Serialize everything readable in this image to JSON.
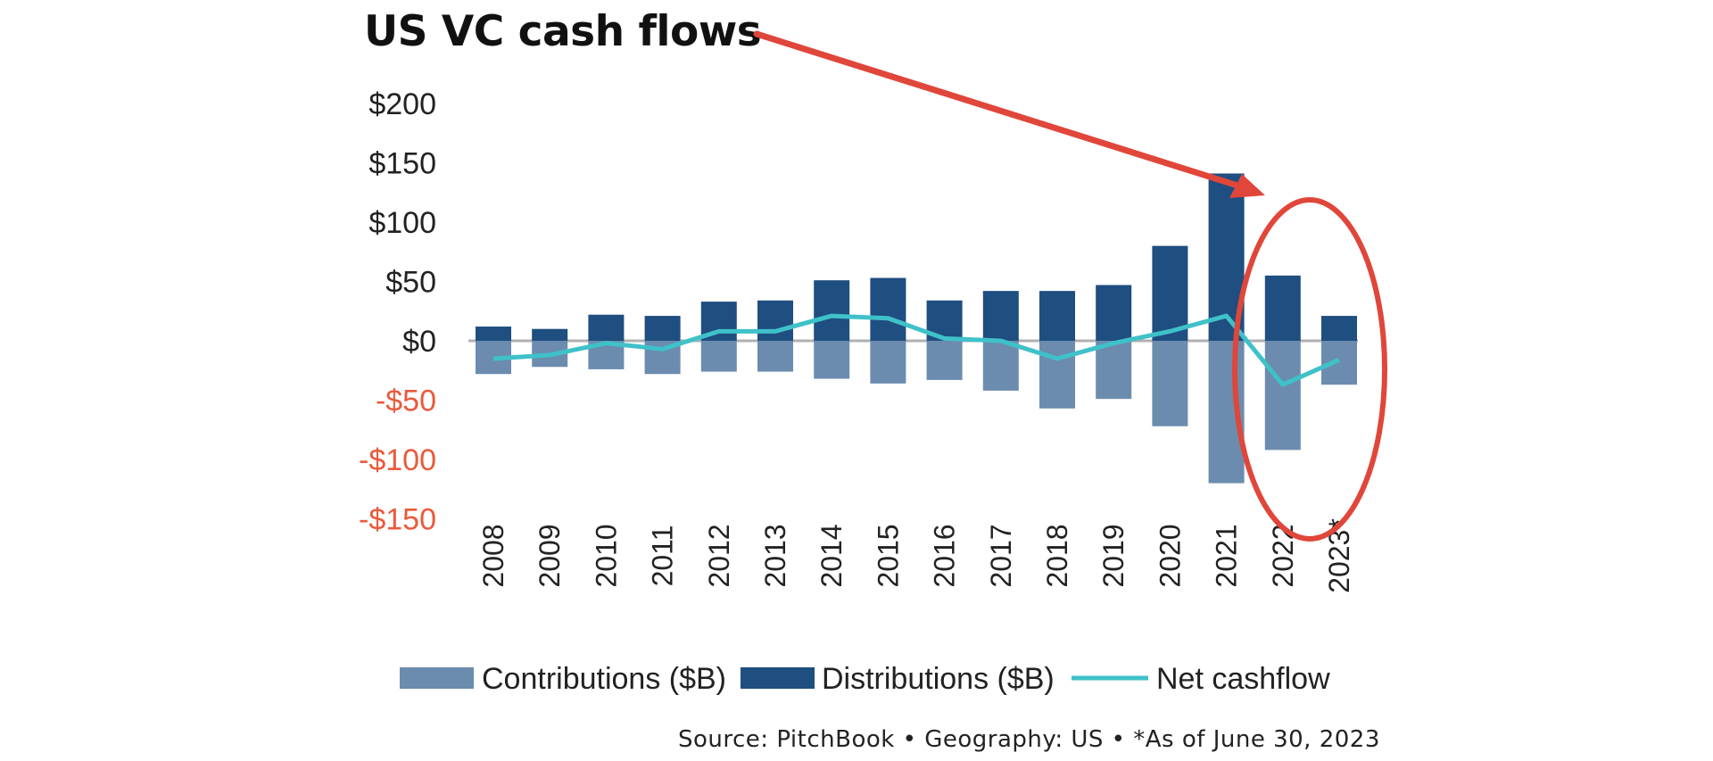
{
  "chart_data": {
    "type": "bar",
    "title": "US VC cash flows",
    "categories": [
      "2008",
      "2009",
      "2010",
      "2011",
      "2012",
      "2013",
      "2014",
      "2015",
      "2016",
      "2017",
      "2018",
      "2019",
      "2020",
      "2021",
      "2022",
      "2023*"
    ],
    "series": [
      {
        "name": "Contributions ($B)",
        "type": "bar",
        "color": "#6b8cae",
        "values": [
          -28,
          -22,
          -24,
          -28,
          -26,
          -26,
          -32,
          -36,
          -33,
          -42,
          -57,
          -49,
          -72,
          -120,
          -92,
          -37
        ]
      },
      {
        "name": "Distributions ($B)",
        "type": "bar",
        "color": "#1f4e80",
        "values": [
          12,
          10,
          22,
          21,
          33,
          34,
          51,
          53,
          34,
          42,
          42,
          47,
          80,
          141,
          55,
          21
        ]
      },
      {
        "name": "Net cashflow",
        "type": "line",
        "color": "#3fc1c9",
        "values": [
          -15,
          -12,
          -2,
          -7,
          8,
          8,
          21,
          19,
          2,
          0,
          -15,
          -2,
          8,
          21,
          -37,
          -16
        ]
      }
    ],
    "ylim": [
      -150,
      200
    ],
    "yticks": [
      200,
      150,
      100,
      50,
      0,
      -50,
      -100,
      -150
    ],
    "ytick_labels": [
      "$200",
      "$150",
      "$100",
      "$50",
      "$0",
      "-$50",
      "-$100",
      "-$150"
    ],
    "xlabel": "",
    "ylabel": "",
    "legend_position": "bottom",
    "annotations": [
      "red arrow pointing to 2021 peak",
      "red circle around 2022–2023*"
    ]
  },
  "colors": {
    "positive_tick": "#222222",
    "negative_tick": "#ea5a3c",
    "zero_line": "#b0b0b0",
    "annotation": "#e0463a"
  },
  "footer": {
    "source": "Source: PitchBook  •  Geography: US  •  *As of June 30, 2023"
  }
}
